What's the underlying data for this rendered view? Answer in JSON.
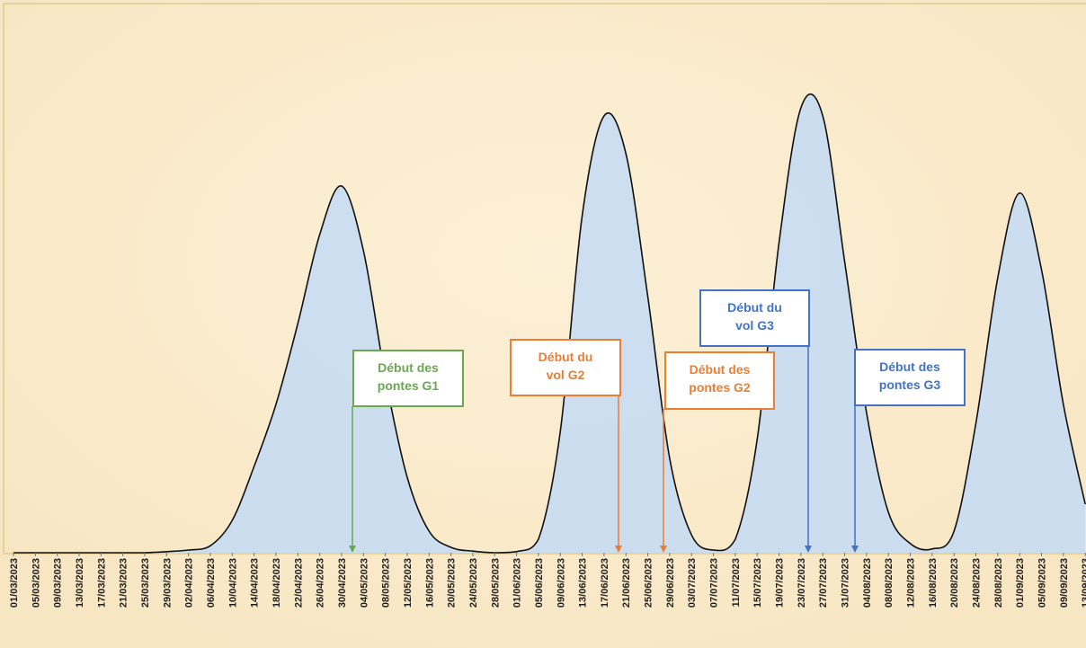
{
  "chart_data": {
    "type": "area",
    "categories": [
      "01/03/2023",
      "05/03/2023",
      "09/03/2023",
      "13/03/2023",
      "17/03/2023",
      "21/03/2023",
      "25/03/2023",
      "29/03/2023",
      "02/04/2023",
      "06/04/2023",
      "10/04/2023",
      "14/04/2023",
      "18/04/2023",
      "22/04/2023",
      "26/04/2023",
      "30/04/2023",
      "04/05/2023",
      "08/05/2023",
      "12/05/2023",
      "16/05/2023",
      "20/05/2023",
      "24/05/2023",
      "28/05/2023",
      "01/06/2023",
      "05/06/2023",
      "09/06/2023",
      "13/06/2023",
      "17/06/2023",
      "21/06/2023",
      "25/06/2023",
      "29/06/2023",
      "03/07/2023",
      "07/07/2023",
      "11/07/2023",
      "15/07/2023",
      "19/07/2023",
      "23/07/2023",
      "27/07/2023",
      "31/07/2023",
      "04/08/2023",
      "08/08/2023",
      "12/08/2023",
      "16/08/2023",
      "20/08/2023",
      "24/08/2023",
      "28/08/2023",
      "01/09/2023",
      "05/09/2023",
      "09/09/2023",
      "13/09/2023"
    ],
    "values": [
      0,
      0,
      0,
      0,
      0,
      0,
      0,
      0.2,
      0.5,
      1.3,
      6,
      16,
      27.5,
      42.5,
      59,
      68,
      56,
      32.5,
      14,
      4,
      1,
      0.3,
      0,
      0.2,
      2.5,
      22.5,
      62.5,
      81,
      74,
      47.5,
      17.5,
      3.3,
      0.5,
      2.5,
      21,
      57.5,
      82.5,
      81,
      54,
      26,
      7.5,
      1.7,
      0.7,
      4,
      24,
      51,
      66.7,
      52.5,
      27.5,
      9
    ],
    "color": "#c6dcf3",
    "ylim": [
      0,
      100
    ],
    "annotations": [
      {
        "lines": [
          "Début des",
          "pontes G1"
        ],
        "color": "#6aa84f"
      },
      {
        "lines": [
          "Début du",
          "vol G2"
        ],
        "color": "#ed7d31"
      },
      {
        "lines": [
          "Début des",
          "pontes G2"
        ],
        "color": "#ed7d31"
      },
      {
        "lines": [
          "Début du",
          "vol G3"
        ],
        "color": "#4472c4"
      },
      {
        "lines": [
          "Début des",
          "pontes G3"
        ],
        "color": "#4472c4"
      }
    ]
  }
}
